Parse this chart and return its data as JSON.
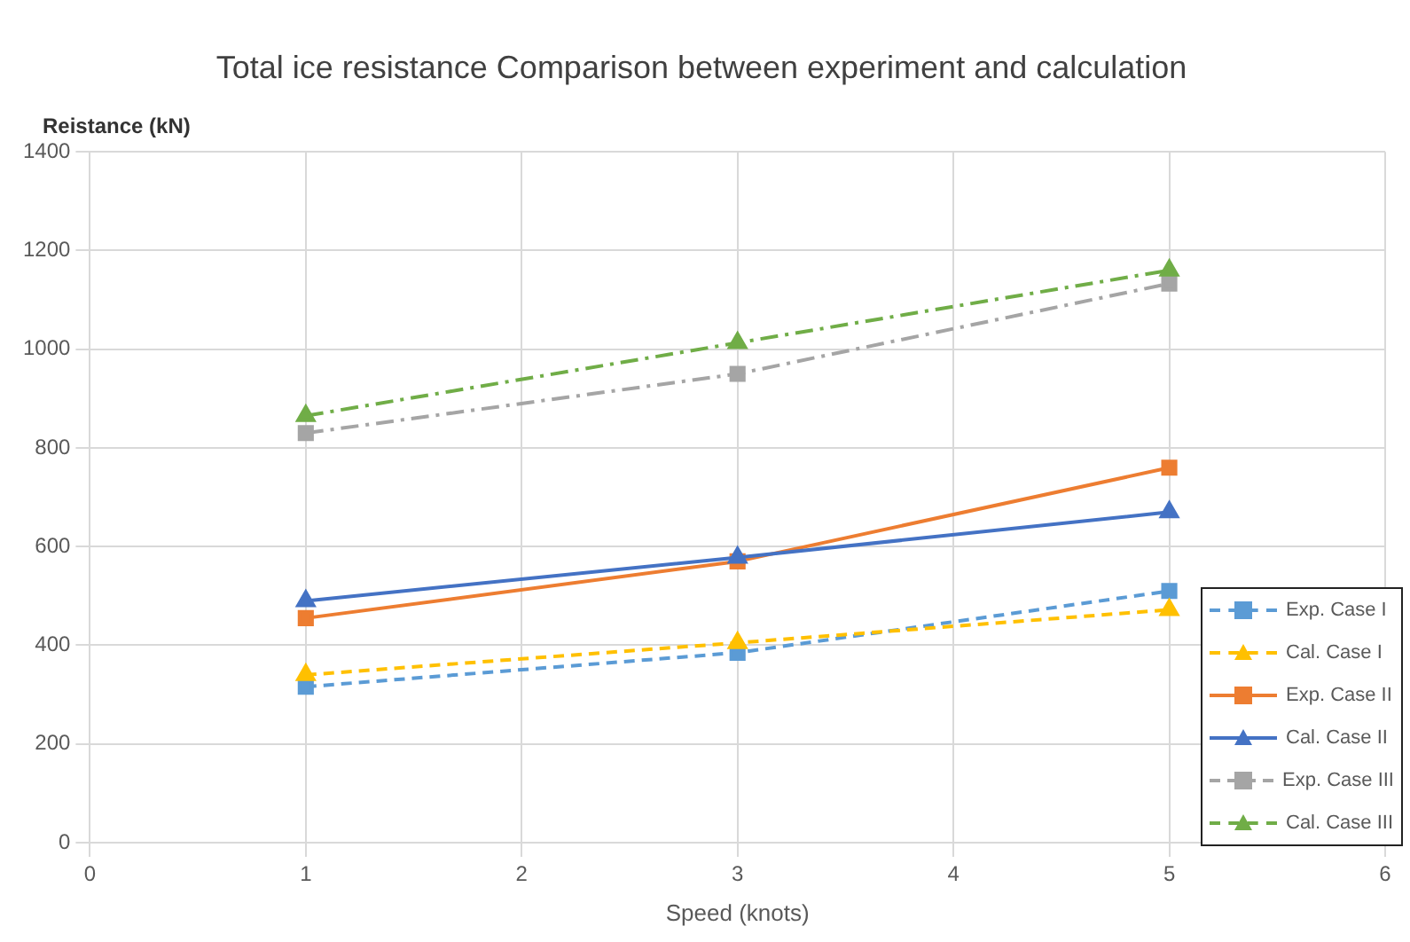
{
  "chart_data": {
    "type": "line",
    "title": "Total ice resistance Comparison between experiment and calculation",
    "xlabel": "Speed (knots)",
    "ylabel": "Reistance (kN)",
    "x": [
      1,
      3,
      5
    ],
    "xlim": [
      0,
      6
    ],
    "xticks": [
      0,
      1,
      2,
      3,
      4,
      5,
      6
    ],
    "ylim": [
      0,
      1400
    ],
    "yticks": [
      0,
      200,
      400,
      600,
      800,
      1000,
      1200,
      1400
    ],
    "grid": true,
    "legend": "bottom right",
    "series": [
      {
        "name": "Exp. Case I",
        "color": "#5b9bd5",
        "values": [
          316,
          385,
          510
        ],
        "marker": "square",
        "line_style": "dashed"
      },
      {
        "name": "Cal. Case I",
        "color": "#ffc000",
        "values": [
          340,
          405,
          472
        ],
        "marker": "triangle",
        "line_style": "dashed"
      },
      {
        "name": "Exp. Case II",
        "color": "#ed7d31",
        "values": [
          455,
          570,
          760
        ],
        "marker": "square",
        "line_style": "solid"
      },
      {
        "name": "Cal. Case II",
        "color": "#4472c4",
        "values": [
          490,
          578,
          670
        ],
        "marker": "triangle",
        "line_style": "solid"
      },
      {
        "name": "Exp. Case III",
        "color": "#a5a5a5",
        "values": [
          830,
          950,
          1133
        ],
        "marker": "square",
        "line_style": "dashdot"
      },
      {
        "name": "Cal. Case III",
        "color": "#70ad47",
        "values": [
          865,
          1013,
          1160
        ],
        "marker": "triangle",
        "line_style": "dashdot"
      }
    ]
  }
}
